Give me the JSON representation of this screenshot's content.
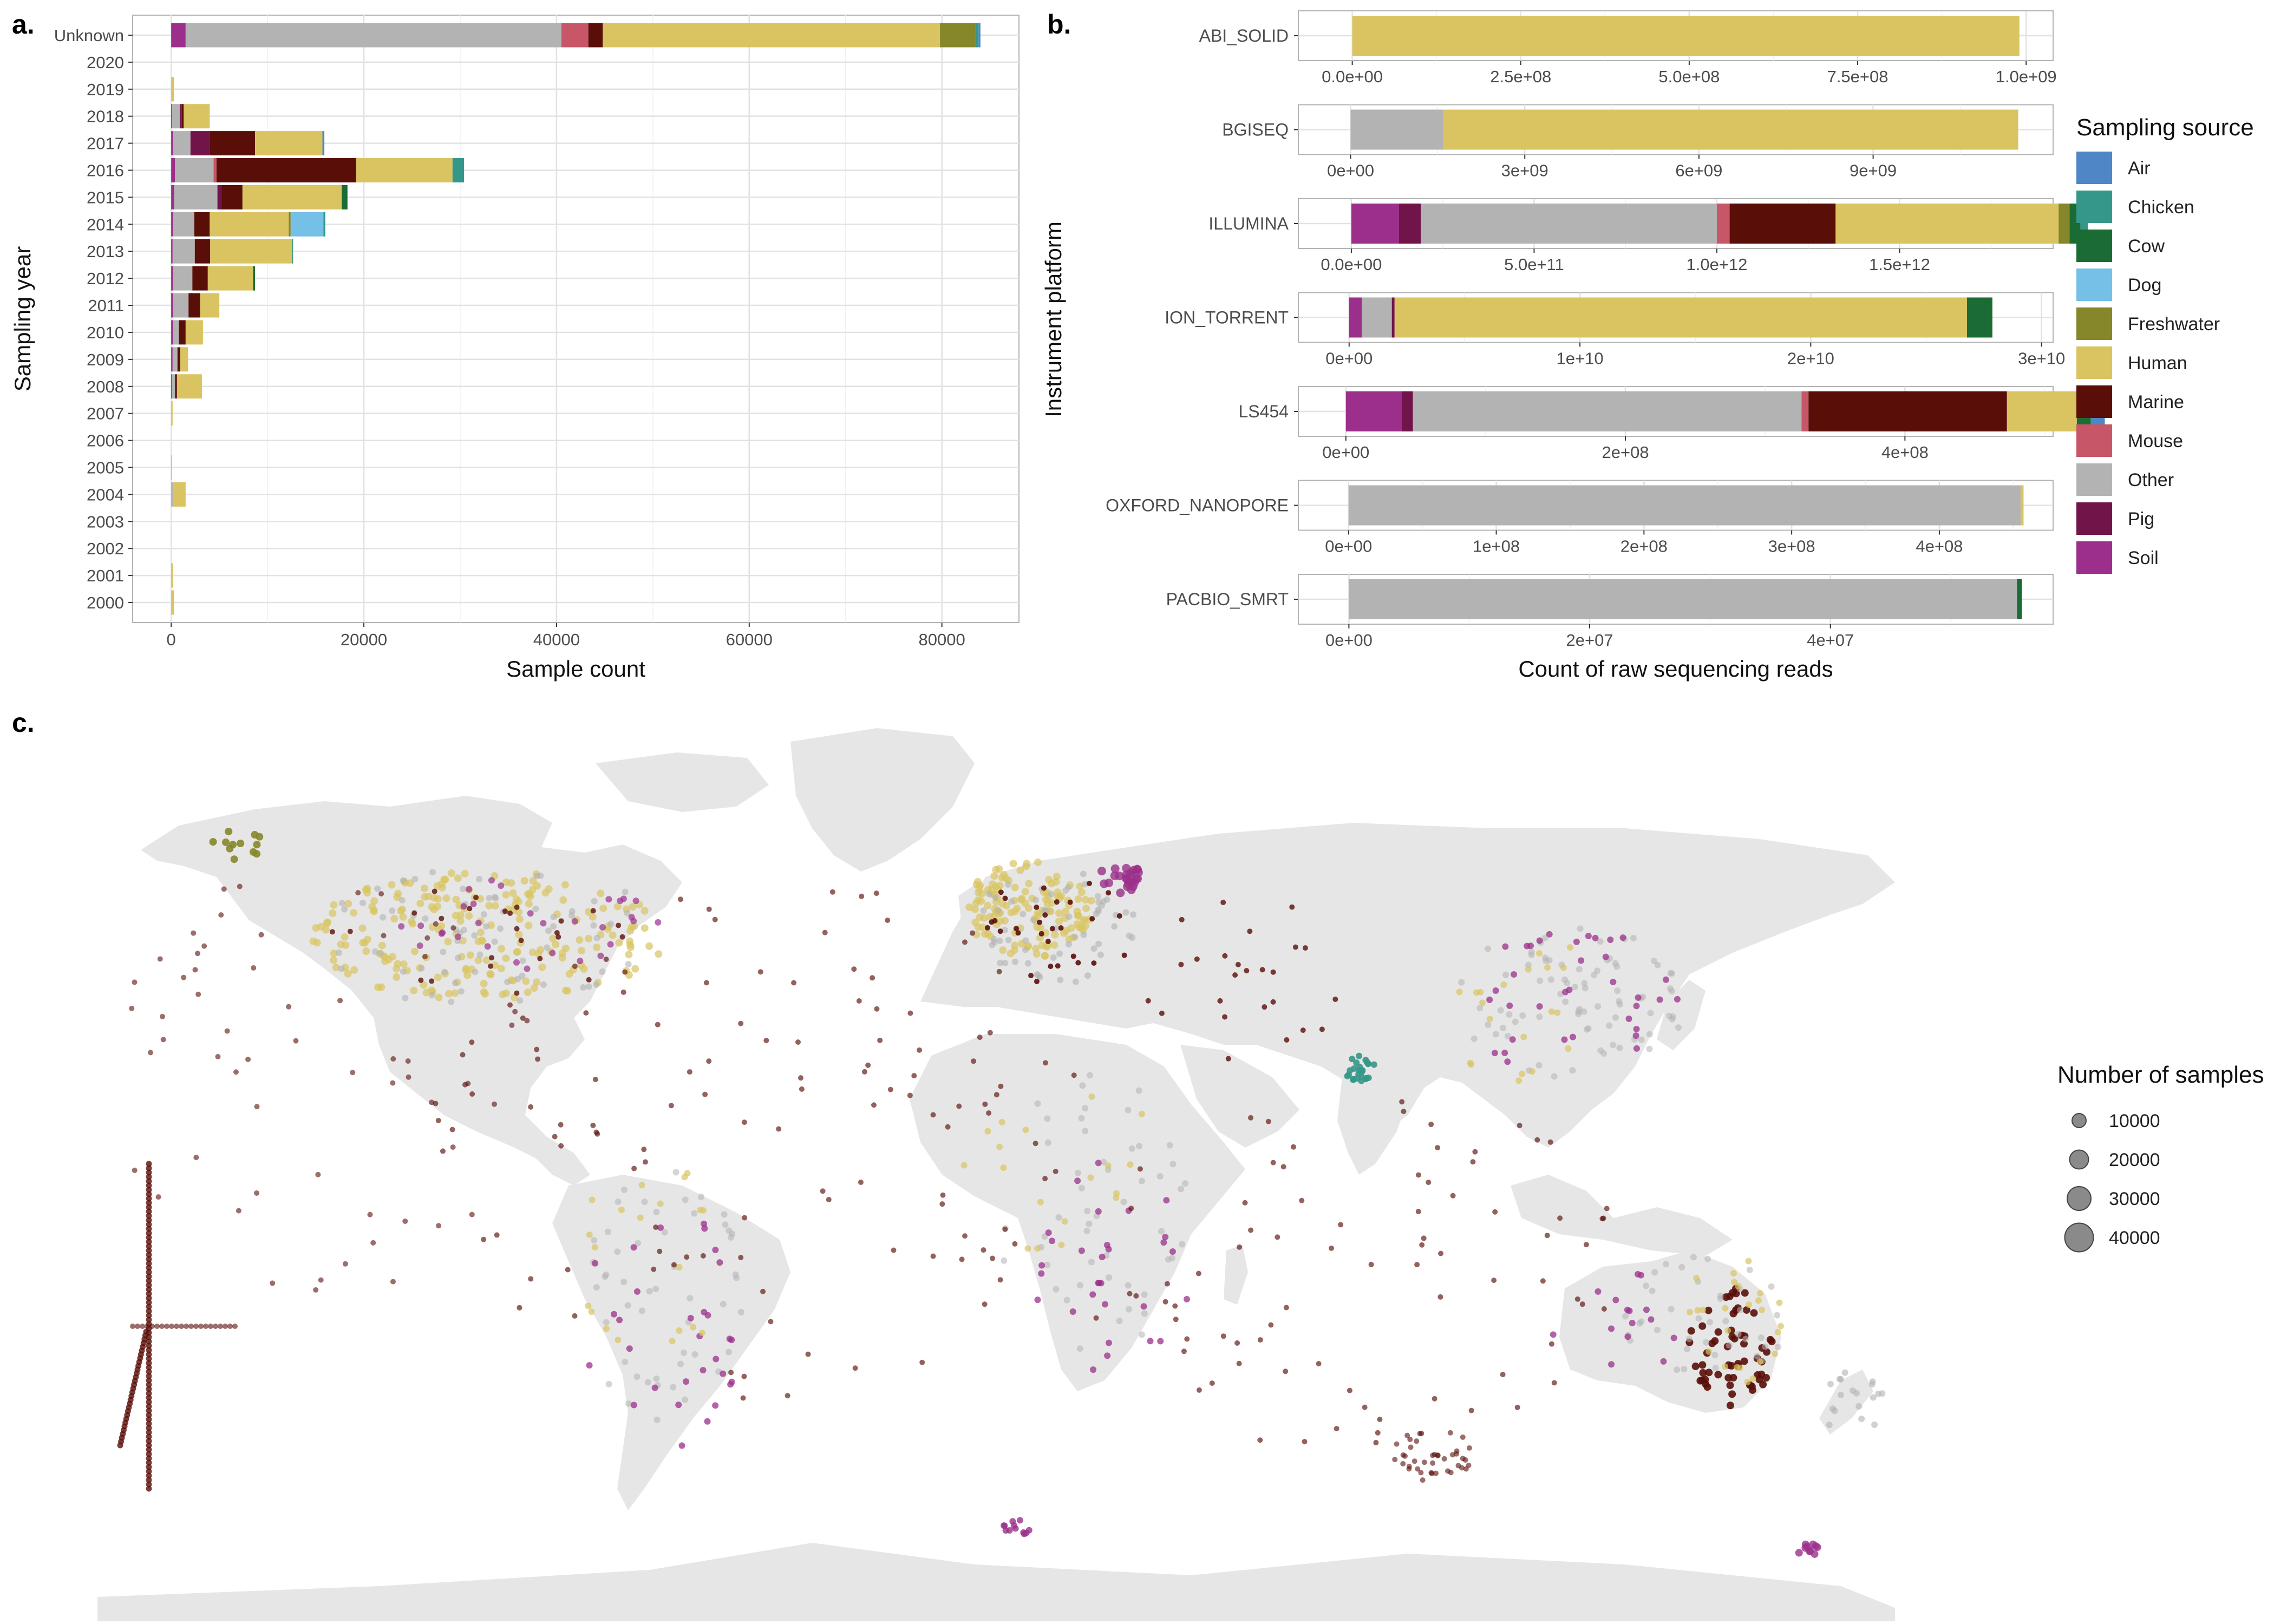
{
  "palette": {
    "Air": "#4f86c6",
    "Chicken": "#35978a",
    "Cow": "#1a6b34",
    "Dog": "#74c0e6",
    "Freshwater": "#86862a",
    "Human": "#d9c461",
    "Marine": "#5a0e08",
    "Mouse": "#c85669",
    "Other": "#b3b3b3",
    "Pig": "#70144a",
    "Soil": "#9b2f8b"
  },
  "panel_labels": {
    "a": "a.",
    "b": "b.",
    "c": "c."
  },
  "chart_data": [
    {
      "id": "a",
      "type": "bar",
      "orientation": "horizontal",
      "stacked": true,
      "xlabel": "Sample count",
      "ylabel": "Sampling year",
      "xlim": [
        -4000,
        88000
      ],
      "xticks": [
        0,
        20000,
        40000,
        60000,
        80000
      ],
      "xtick_labels": [
        "0",
        "20000",
        "40000",
        "60000",
        "80000"
      ],
      "categories": [
        "Unknown",
        "2020",
        "2019",
        "2018",
        "2017",
        "2016",
        "2015",
        "2014",
        "2013",
        "2012",
        "2011",
        "2010",
        "2009",
        "2008",
        "2007",
        "2006",
        "2005",
        "2004",
        "2003",
        "2002",
        "2001",
        "2000"
      ],
      "series": [
        {
          "name": "Soil",
          "values": [
            1500,
            0,
            0,
            100,
            200,
            400,
            300,
            200,
            150,
            200,
            200,
            200,
            150,
            100,
            0,
            0,
            0,
            0,
            0,
            0,
            0,
            0
          ]
        },
        {
          "name": "Other",
          "values": [
            39000,
            0,
            0,
            800,
            1800,
            4000,
            4500,
            2200,
            2300,
            2000,
            1600,
            600,
            500,
            300,
            0,
            0,
            0,
            200,
            0,
            0,
            0,
            0
          ]
        },
        {
          "name": "Mouse",
          "values": [
            2800,
            0,
            0,
            0,
            0,
            300,
            0,
            0,
            0,
            0,
            0,
            0,
            0,
            0,
            0,
            0,
            0,
            0,
            0,
            0,
            0,
            0
          ]
        },
        {
          "name": "Pig",
          "values": [
            0,
            0,
            0,
            200,
            2000,
            0,
            400,
            0,
            0,
            0,
            0,
            0,
            0,
            0,
            0,
            0,
            0,
            0,
            0,
            0,
            0,
            0
          ]
        },
        {
          "name": "Marine",
          "values": [
            1500,
            0,
            0,
            200,
            4700,
            14500,
            2200,
            1600,
            1600,
            1600,
            1200,
            700,
            300,
            200,
            0,
            0,
            0,
            0,
            0,
            0,
            0,
            0
          ]
        },
        {
          "name": "Human",
          "values": [
            35000,
            0,
            300,
            2700,
            7000,
            10000,
            10300,
            8200,
            8500,
            4700,
            2000,
            1800,
            800,
            2600,
            150,
            0,
            100,
            1300,
            0,
            0,
            200,
            300
          ]
        },
        {
          "name": "Freshwater",
          "values": [
            3700,
            0,
            0,
            0,
            0,
            0,
            0,
            200,
            0,
            0,
            0,
            0,
            0,
            0,
            0,
            0,
            0,
            0,
            0,
            0,
            0,
            0
          ]
        },
        {
          "name": "Dog",
          "values": [
            0,
            0,
            0,
            0,
            0,
            0,
            0,
            3400,
            0,
            0,
            0,
            0,
            0,
            0,
            0,
            0,
            0,
            0,
            0,
            0,
            0,
            0
          ]
        },
        {
          "name": "Chicken",
          "values": [
            300,
            0,
            0,
            0,
            0,
            1200,
            0,
            200,
            100,
            0,
            0,
            0,
            0,
            0,
            0,
            0,
            0,
            0,
            0,
            0,
            0,
            0
          ]
        },
        {
          "name": "Cow",
          "values": [
            0,
            0,
            0,
            0,
            0,
            0,
            600,
            0,
            0,
            200,
            0,
            0,
            0,
            0,
            0,
            0,
            0,
            0,
            0,
            0,
            0,
            0
          ]
        },
        {
          "name": "Air",
          "values": [
            200,
            0,
            0,
            0,
            200,
            0,
            0,
            0,
            0,
            0,
            0,
            0,
            0,
            0,
            0,
            0,
            0,
            0,
            0,
            0,
            0,
            0
          ]
        }
      ]
    },
    {
      "id": "b",
      "type": "bar",
      "orientation": "horizontal",
      "stacked": true,
      "facets": "instrument platform",
      "xlabel": "Count of raw sequencing reads",
      "ylabel": "Instrument platform",
      "facet_panels": [
        {
          "name": "ABI_SOLID",
          "xlim": [
            -80000000.0,
            1040000000.0
          ],
          "ticks": [
            0,
            250000000.0,
            500000000.0,
            750000000.0,
            1000000000.0
          ],
          "tick_labels": [
            "0.0e+00",
            "2.5e+08",
            "5.0e+08",
            "7.5e+08",
            "1.0e+09"
          ],
          "segments": [
            {
              "source": "Human",
              "value": 990000000.0
            }
          ]
        },
        {
          "name": "BGISEQ",
          "xlim": [
            -900000000.0,
            12100000000.0
          ],
          "ticks": [
            0,
            3000000000.0,
            6000000000.0,
            9000000000.0
          ],
          "tick_labels": [
            "0e+00",
            "3e+09",
            "6e+09",
            "9e+09"
          ],
          "segments": [
            {
              "source": "Other",
              "value": 1600000000.0
            },
            {
              "source": "Human",
              "value": 9900000000.0
            }
          ]
        },
        {
          "name": "ILLUMINA",
          "xlim": [
            -145000000000.0,
            1920000000000.0
          ],
          "ticks": [
            0,
            500000000000.0,
            1000000000000.0,
            1500000000000.0
          ],
          "tick_labels": [
            "0.0e+00",
            "5.0e+11",
            "1.0e+12",
            "1.5e+12"
          ],
          "segments": [
            {
              "source": "Soil",
              "value": 130000000000.0
            },
            {
              "source": "Pig",
              "value": 60000000000.0
            },
            {
              "source": "Other",
              "value": 810000000000.0
            },
            {
              "source": "Mouse",
              "value": 35000000000.0
            },
            {
              "source": "Marine",
              "value": 290000000000.0
            },
            {
              "source": "Human",
              "value": 610000000000.0
            },
            {
              "source": "Freshwater",
              "value": 30000000000.0
            },
            {
              "source": "Cow",
              "value": 30000000000.0
            },
            {
              "source": "Chicken",
              "value": 20000000000.0
            }
          ]
        },
        {
          "name": "ION_TORRENT",
          "xlim": [
            -2200000000.0,
            30500000000.0
          ],
          "ticks": [
            0,
            10000000000.0,
            20000000000.0,
            30000000000.0
          ],
          "tick_labels": [
            "0e+00",
            "1e+10",
            "2e+10",
            "3e+10"
          ],
          "segments": [
            {
              "source": "Soil",
              "value": 550000000.0
            },
            {
              "source": "Other",
              "value": 1300000000.0
            },
            {
              "source": "Pig",
              "value": 120000000.0
            },
            {
              "source": "Human",
              "value": 24800000000.0
            },
            {
              "source": "Cow",
              "value": 1100000000.0
            }
          ]
        },
        {
          "name": "LS454",
          "xlim": [
            -34000000.0,
            506000000.0
          ],
          "ticks": [
            0,
            200000000.0,
            400000000.0
          ],
          "tick_labels": [
            "0e+00",
            "2e+08",
            "4e+08"
          ],
          "segments": [
            {
              "source": "Soil",
              "value": 40000000.0
            },
            {
              "source": "Pig",
              "value": 8000000.0
            },
            {
              "source": "Other",
              "value": 278000000.0
            },
            {
              "source": "Mouse",
              "value": 5000000.0
            },
            {
              "source": "Marine",
              "value": 142000000.0
            },
            {
              "source": "Human",
              "value": 50000000.0
            },
            {
              "source": "Cow",
              "value": 10000000.0
            },
            {
              "source": "Air",
              "value": 10000000.0
            }
          ]
        },
        {
          "name": "OXFORD_NANOPORE",
          "xlim": [
            -34000000.0,
            477000000.0
          ],
          "ticks": [
            0,
            100000000.0,
            200000000.0,
            300000000.0,
            400000000.0
          ],
          "tick_labels": [
            "0e+00",
            "1e+08",
            "2e+08",
            "3e+08",
            "4e+08"
          ],
          "segments": [
            {
              "source": "Other",
              "value": 455000000.0
            },
            {
              "source": "Human",
              "value": 2000000.0
            }
          ]
        },
        {
          "name": "PACBIO_SMRT",
          "xlim": [
            -4200000.0,
            58500000.0
          ],
          "ticks": [
            0,
            20000000.0,
            40000000.0
          ],
          "tick_labels": [
            "0e+00",
            "2e+07",
            "4e+07"
          ],
          "segments": [
            {
              "source": "Other",
              "value": 55500000.0
            },
            {
              "source": "Cow",
              "value": 400000.0
            }
          ]
        }
      ],
      "legend": {
        "title": "Sampling source",
        "placement": "right",
        "entries": [
          "Air",
          "Chicken",
          "Cow",
          "Dog",
          "Freshwater",
          "Human",
          "Marine",
          "Mouse",
          "Other",
          "Pig",
          "Soil"
        ]
      }
    },
    {
      "id": "c",
      "type": "scatter",
      "subtype": "world map of sampling locations",
      "color_by": "Sampling source",
      "size_legend": {
        "title": "Number of samples",
        "entries": [
          {
            "label": "10000",
            "value": 10000
          },
          {
            "label": "20000",
            "value": 20000
          },
          {
            "label": "30000",
            "value": 30000
          },
          {
            "label": "40000",
            "value": 40000
          }
        ]
      }
    }
  ]
}
